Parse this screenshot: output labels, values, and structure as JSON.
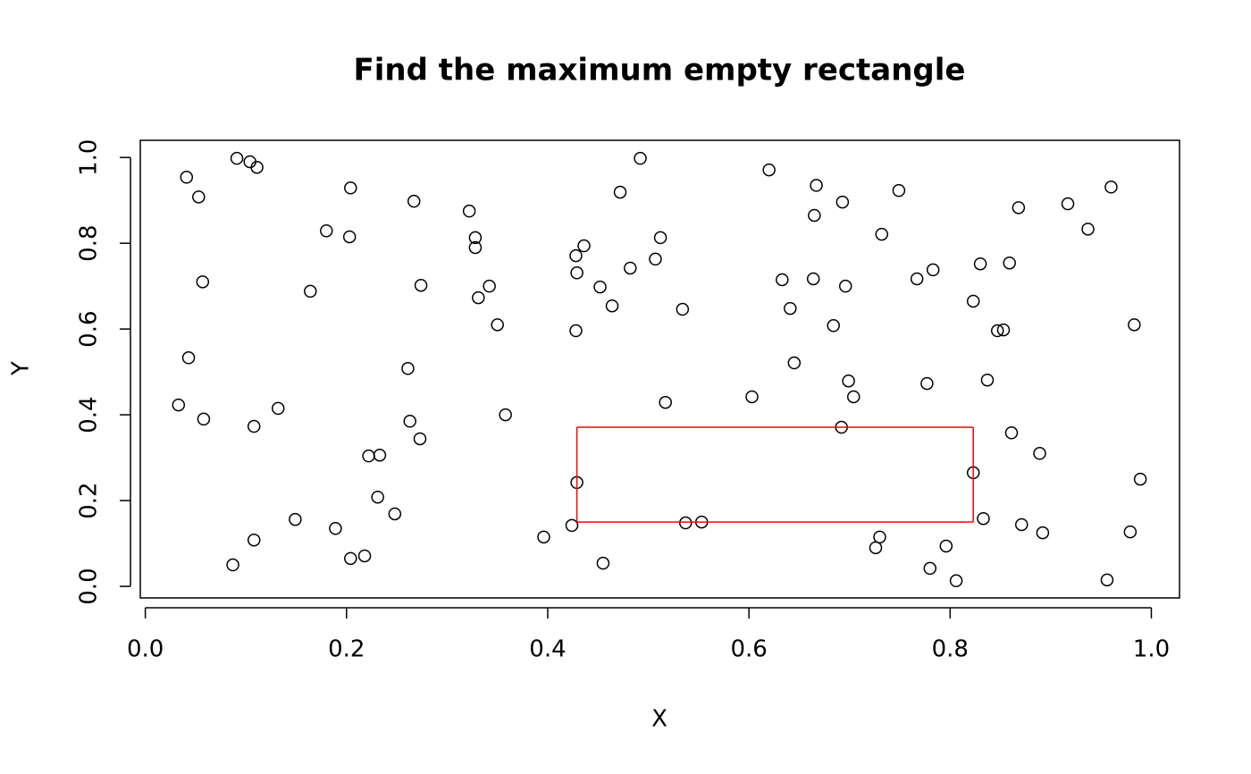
{
  "chart_data": {
    "type": "scatter",
    "title": "Find the maximum empty rectangle",
    "x_label": "X",
    "y_label": "Y",
    "color": "#000000",
    "xlim": [
      -0.005,
      1.028
    ],
    "ylim": [
      -0.027,
      1.04
    ],
    "xticks": [
      {
        "value": 0,
        "label": "0.0"
      },
      0.2,
      0.4,
      0.6,
      0.8,
      {
        "value": 1,
        "label": "1.0"
      }
    ],
    "yticks": [
      {
        "value": 0,
        "label": "0.0"
      },
      0.2,
      0.4,
      0.6,
      0.8,
      {
        "value": 1,
        "label": "1.0"
      }
    ],
    "x": [
      0.091,
      0.104,
      0.111,
      0.041,
      0.053,
      0.057,
      0.043,
      0.033,
      0.058,
      0.108,
      0.132,
      0.087,
      0.108,
      0.149,
      0.189,
      0.204,
      0.218,
      0.222,
      0.233,
      0.231,
      0.248,
      0.164,
      0.18,
      0.203,
      0.204,
      0.267,
      0.274,
      0.261,
      0.263,
      0.273,
      0.322,
      0.328,
      0.328,
      0.342,
      0.331,
      0.35,
      0.358,
      0.396,
      0.424,
      0.429,
      0.428,
      0.429,
      0.436,
      0.428,
      0.452,
      0.464,
      0.472,
      0.482,
      0.492,
      0.507,
      0.512,
      0.534,
      0.517,
      0.455,
      0.537,
      0.553,
      0.603,
      0.62,
      0.633,
      0.641,
      0.645,
      0.667,
      0.665,
      0.664,
      0.693,
      0.684,
      0.699,
      0.704,
      0.692,
      0.696,
      0.732,
      0.749,
      0.73,
      0.726,
      0.767,
      0.783,
      0.777,
      0.78,
      0.796,
      0.806,
      0.823,
      0.823,
      0.83,
      0.833,
      0.837,
      0.847,
      0.853,
      0.859,
      0.861,
      0.868,
      0.871,
      0.889,
      0.892,
      0.917,
      0.937,
      0.96,
      0.956,
      0.983,
      0.979,
      0.989
    ],
    "values": [
      0.998,
      0.99,
      0.977,
      0.954,
      0.908,
      0.71,
      0.533,
      0.423,
      0.39,
      0.373,
      0.415,
      0.05,
      0.108,
      0.156,
      0.135,
      0.065,
      0.071,
      0.304,
      0.306,
      0.208,
      0.169,
      0.688,
      0.829,
      0.815,
      0.929,
      0.898,
      0.702,
      0.508,
      0.385,
      0.344,
      0.875,
      0.813,
      0.79,
      0.7,
      0.673,
      0.61,
      0.4,
      0.115,
      0.142,
      0.242,
      0.771,
      0.731,
      0.794,
      0.596,
      0.698,
      0.654,
      0.919,
      0.742,
      0.998,
      0.763,
      0.813,
      0.646,
      0.429,
      0.054,
      0.148,
      0.15,
      0.442,
      0.971,
      0.715,
      0.648,
      0.521,
      0.935,
      0.865,
      0.717,
      0.896,
      0.608,
      0.479,
      0.442,
      0.371,
      0.7,
      0.821,
      0.923,
      0.115,
      0.09,
      0.717,
      0.738,
      0.473,
      0.042,
      0.094,
      0.013,
      0.265,
      0.665,
      0.752,
      0.158,
      0.481,
      0.596,
      0.598,
      0.754,
      0.358,
      0.883,
      0.144,
      0.31,
      0.125,
      0.892,
      0.833,
      0.931,
      0.015,
      0.61,
      0.127,
      0.25
    ],
    "rectangle": {
      "xmin": 0.429,
      "xmax": 0.823,
      "ymin": 0.15,
      "ymax": 0.371,
      "color": "#ff0000"
    }
  }
}
